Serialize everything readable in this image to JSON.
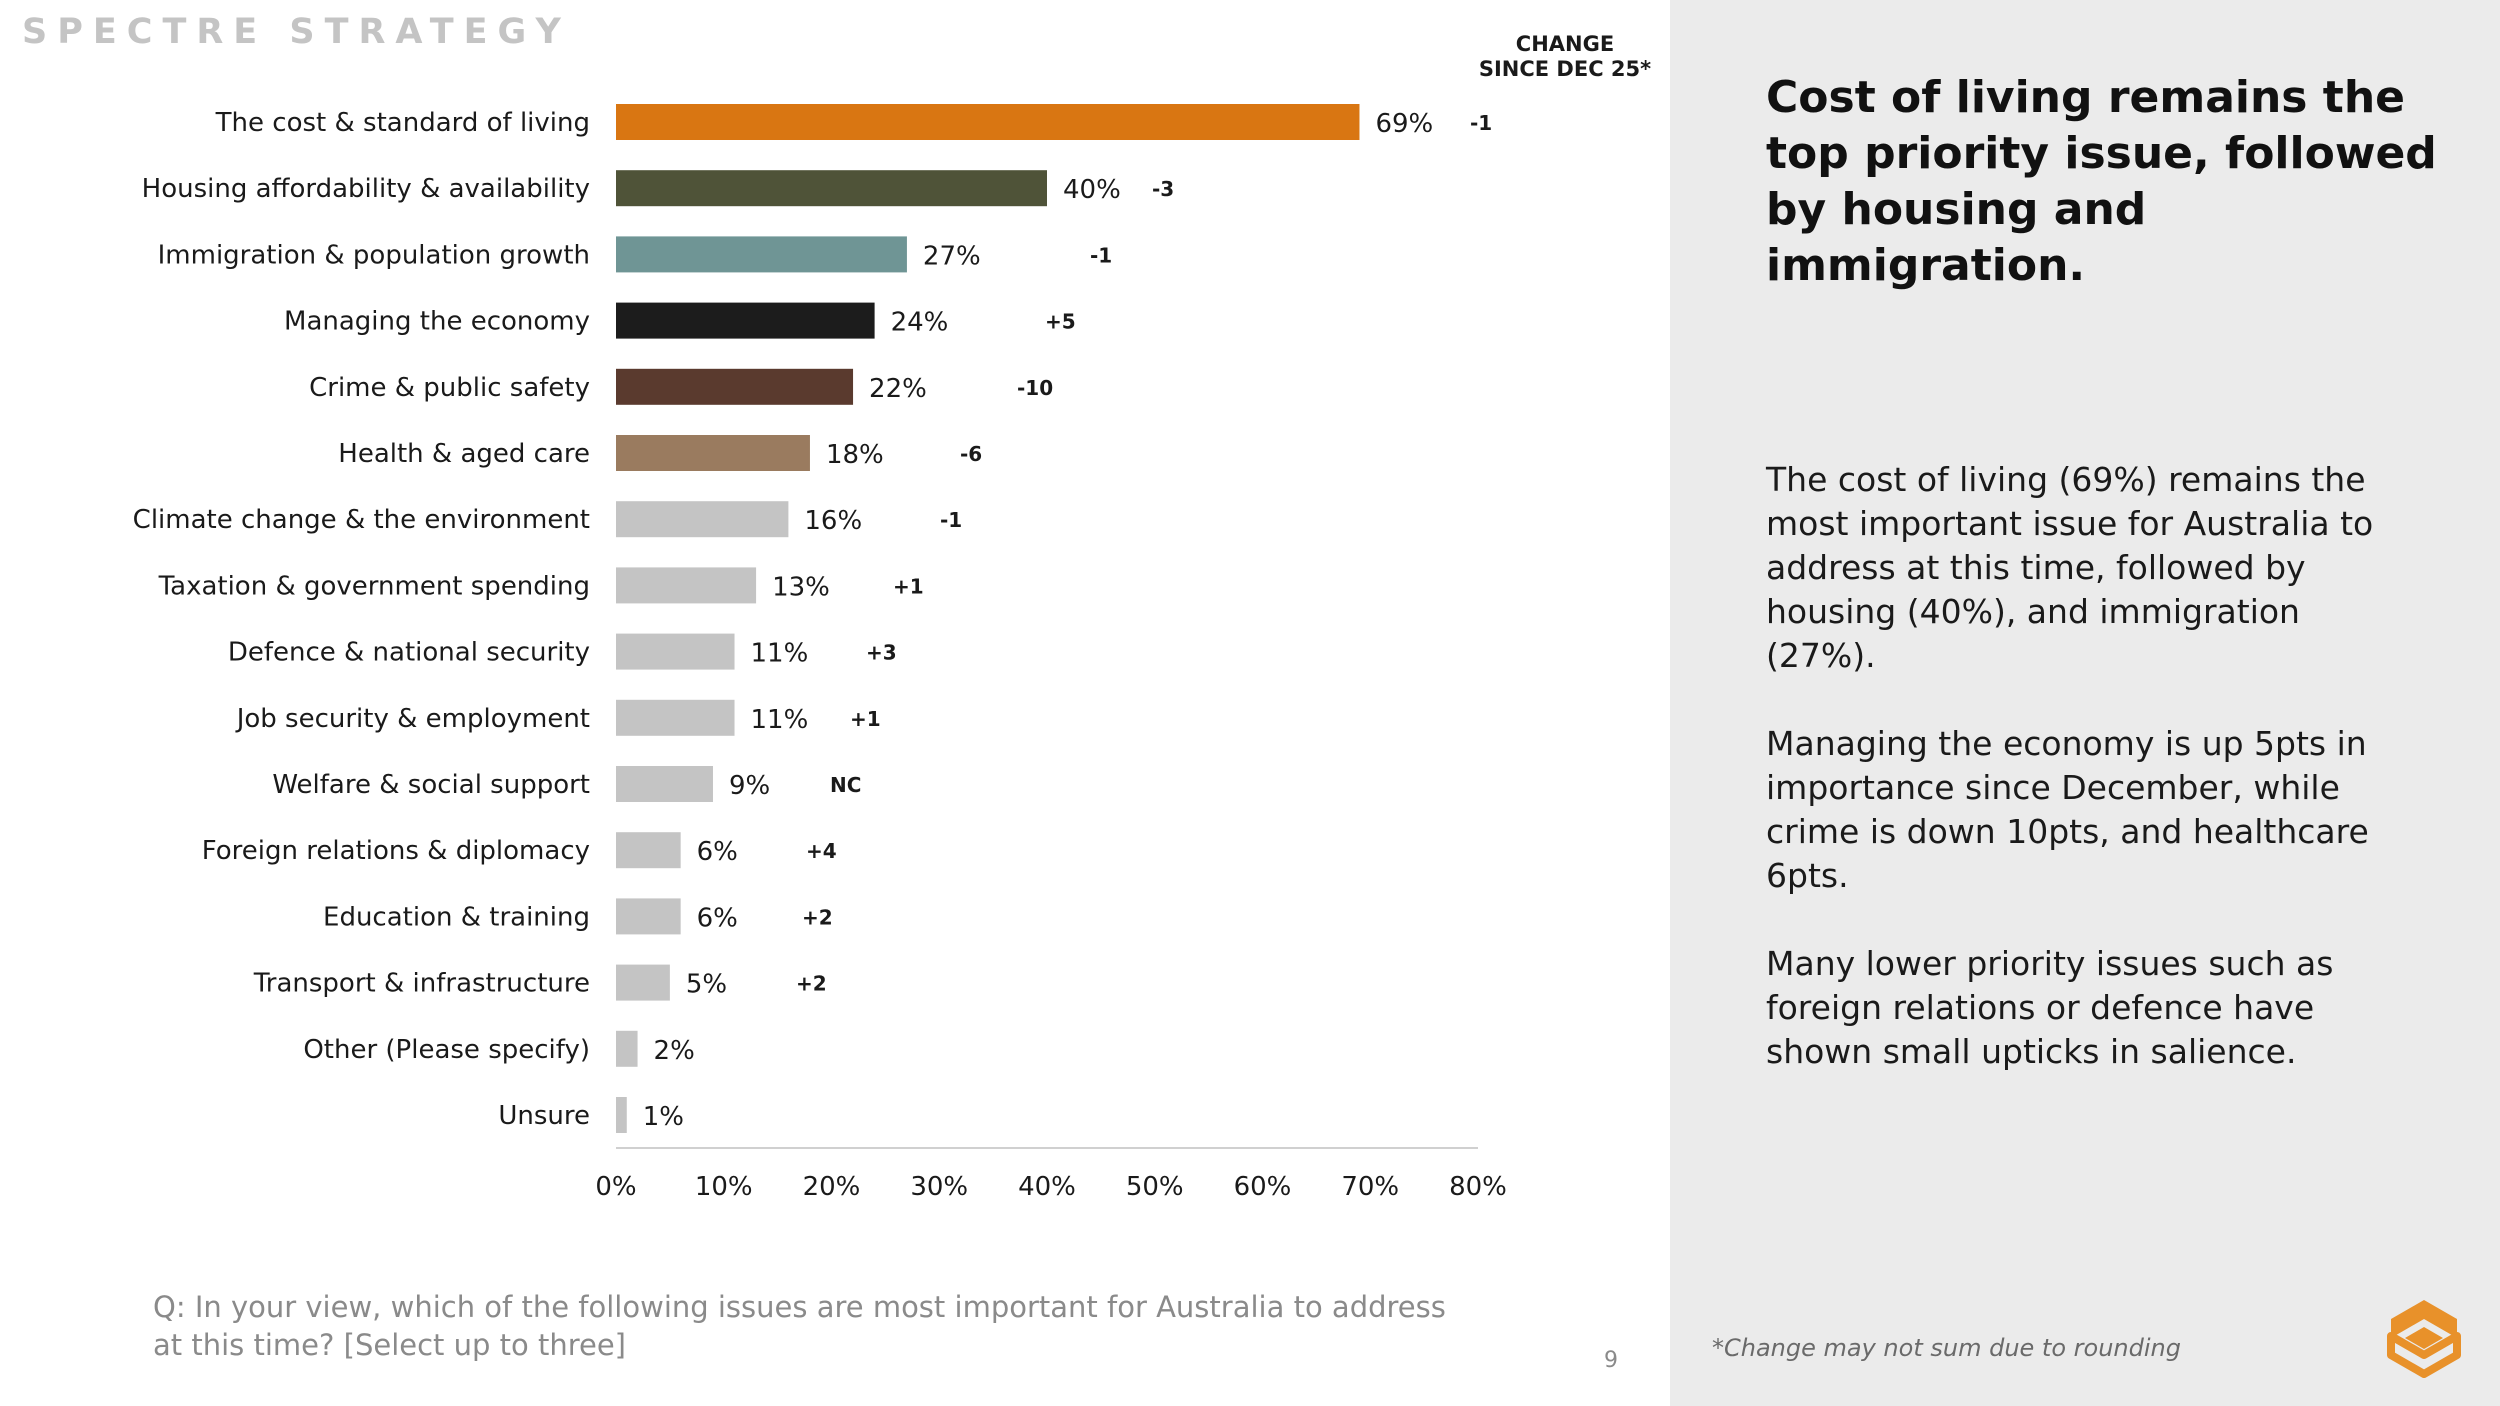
{
  "brand": {
    "name": "SPECTRE STRATEGY"
  },
  "change_header": {
    "line1": "CHANGE",
    "line2": "SINCE DEC 25*"
  },
  "chart_data": {
    "type": "bar",
    "orientation": "horizontal",
    "categories": [
      "The cost & standard of living",
      "Housing affordability & availability",
      "Immigration & population growth",
      "Managing the economy",
      "Crime & public safety",
      "Health & aged care",
      "Climate change & the environment",
      "Taxation & government spending",
      "Defence & national security",
      "Job security & employment",
      "Welfare & social support",
      "Foreign relations & diplomacy",
      "Education & training",
      "Transport & infrastructure",
      "Other (Please specify)",
      "Unsure"
    ],
    "values": [
      69,
      40,
      27,
      24,
      22,
      18,
      16,
      13,
      11,
      11,
      9,
      6,
      6,
      5,
      2,
      1
    ],
    "value_labels": [
      "69%",
      "40%",
      "27%",
      "24%",
      "22%",
      "18%",
      "16%",
      "13%",
      "11%",
      "11%",
      "9%",
      "6%",
      "6%",
      "5%",
      "2%",
      "1%"
    ],
    "change_since_dec_25": [
      "-1",
      "-3",
      "-1",
      "+5",
      "-10",
      "-6",
      "-1",
      "+1",
      "+3",
      "+1",
      "NC",
      "+4",
      "+2",
      "+2",
      "",
      ""
    ],
    "colors": [
      "#d97612",
      "#4f5338",
      "#6f9595",
      "#1c1c1c",
      "#5a3a2e",
      "#9a7b5f",
      "#c4c4c4",
      "#c4c4c4",
      "#c4c4c4",
      "#c4c4c4",
      "#c4c4c4",
      "#c4c4c4",
      "#c4c4c4",
      "#c4c4c4",
      "#c4c4c4",
      "#c4c4c4"
    ],
    "xlim": [
      0,
      80
    ],
    "x_ticks": [
      0,
      10,
      20,
      30,
      40,
      50,
      60,
      70,
      80
    ],
    "x_tick_labels": [
      "0%",
      "10%",
      "20%",
      "30%",
      "40%",
      "50%",
      "60%",
      "70%",
      "80%"
    ],
    "grid": false,
    "legend": "none"
  },
  "question": "Q: In your view, which of the following issues are most important for Australia to address at this time? [Select up to three]",
  "page_number": "9",
  "side": {
    "headline": "Cost of living remains the top priority issue, followed by housing and immigration.",
    "paragraphs": [
      "The cost of living (69%) remains the most important issue for Australia to address at this time, followed by housing (40%), and immigration (27%).",
      "Managing the economy is up 5pts in importance since December, while crime is down 10pts, and healthcare 6pts.",
      "Many lower priority issues such as foreign relations or defence have shown small upticks in salience."
    ],
    "footnote": "*Change may not sum due to rounding"
  },
  "colors": {
    "accent": "#e8912a",
    "panel": "#ebebeb",
    "brand_text": "#c4c4c4"
  },
  "logo": {
    "icon": "spectre-logo-icon"
  }
}
